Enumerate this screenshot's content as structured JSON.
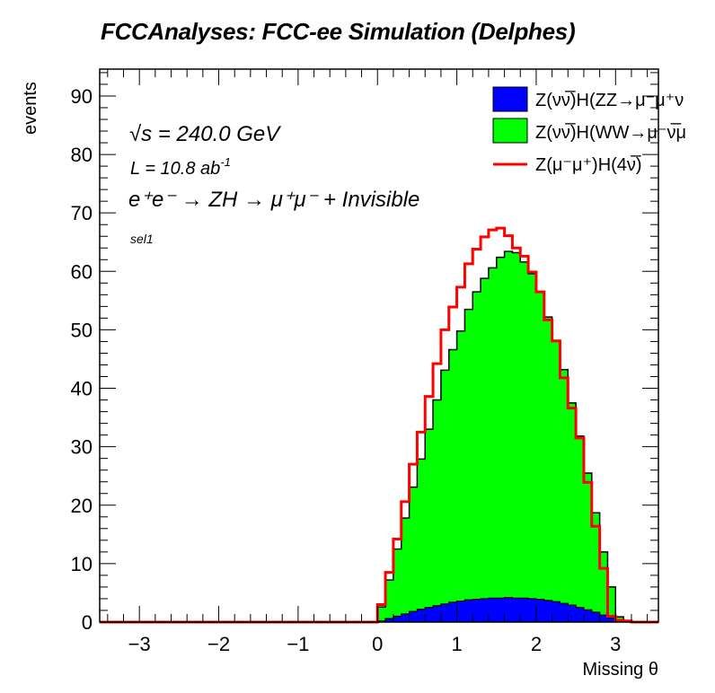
{
  "chart_data": {
    "type": "bar",
    "subtype": "stacked-histogram",
    "title": "FCCAnalyses: FCC-ee Simulation (Delphes)",
    "xlabel": "Missing θ",
    "ylabel": "events",
    "xlim": [
      -3.5,
      3.54
    ],
    "ylim": [
      0,
      94.6
    ],
    "x_ticks": [
      -3,
      -2,
      -1,
      0,
      1,
      2,
      3
    ],
    "x_tick_labels": [
      "−3",
      "−2",
      "−1",
      "0",
      "1",
      "2",
      "3"
    ],
    "y_ticks": [
      0,
      10,
      20,
      30,
      40,
      50,
      60,
      70,
      80,
      90
    ],
    "y_tick_labels": [
      "0",
      "10",
      "20",
      "30",
      "40",
      "50",
      "60",
      "70",
      "80",
      "90"
    ],
    "bin_width": 0.1,
    "bin_start": 0.0,
    "annotations": {
      "sqrt_s": "√s = 240.0 GeV",
      "lumi": "L = 10.8 ab",
      "lumi_sup": "-1",
      "process": "e⁺e⁻ → ZH → μ⁺μ⁻ + Invisible",
      "selection": "sel1"
    },
    "legend": {
      "placement": "top-right",
      "entries": [
        {
          "label": "Z(νν̅)H(ZZ→μ⁻μ⁺ν",
          "style": "fill",
          "color": "#0000ff"
        },
        {
          "label": "Z(νν̅)H(WW→μ⁻ν̅μ",
          "style": "fill",
          "color": "#00ff00"
        },
        {
          "label": "Z(μ⁻μ⁺)H(4ν̅)",
          "style": "line",
          "color": "#ff0000"
        }
      ]
    },
    "series": [
      {
        "name": "Z(νν̅)H(ZZ→μ⁻μ⁺ν",
        "color": "#0000ff",
        "values": [
          0.2,
          0.6,
          1.0,
          1.4,
          1.8,
          2.2,
          2.5,
          2.8,
          3.1,
          3.4,
          3.6,
          3.8,
          3.9,
          4.0,
          4.1,
          4.1,
          4.2,
          4.1,
          4.1,
          4.0,
          3.9,
          3.7,
          3.5,
          3.2,
          2.9,
          2.5,
          2.1,
          1.7,
          1.2,
          0.7,
          0.3,
          0.1,
          0.0
        ]
      },
      {
        "name": "Z(νν̅)H(WW→μ⁻ν̅μ",
        "color": "#00ff00",
        "values": [
          2.4,
          6.6,
          11.5,
          16.4,
          21.3,
          25.7,
          30.5,
          35.2,
          40.0,
          43.2,
          46.2,
          49.7,
          52.6,
          54.8,
          56.5,
          58.3,
          59.2,
          59.1,
          57.5,
          55.6,
          52.6,
          48.5,
          44.6,
          40.0,
          34.6,
          29.3,
          23.4,
          17.0,
          10.8,
          5.3,
          0.6,
          0.1,
          0.0
        ]
      },
      {
        "name": "Z(μ⁻μ⁺)H(4ν̅)",
        "color": "#ff0000",
        "stacked_total": [
          3.0,
          8.5,
          14.2,
          20.6,
          27.0,
          32.5,
          38.6,
          44.2,
          50.0,
          53.9,
          57.3,
          61.3,
          63.8,
          65.9,
          67.1,
          67.4,
          66.1,
          64.0,
          62.6,
          59.9,
          56.5,
          51.7,
          48.1,
          41.8,
          36.6,
          31.5,
          23.9,
          16.4,
          9.2,
          1.0,
          0.3,
          0.2,
          0.0
        ]
      }
    ]
  }
}
